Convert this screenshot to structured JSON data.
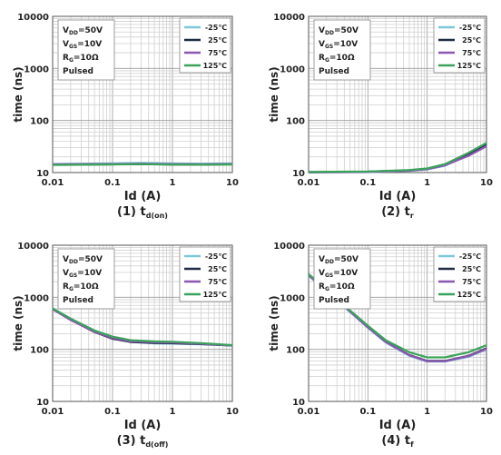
{
  "series_colors": [
    "#7cc8d8",
    "#1f2a44",
    "#8b57b0",
    "#3aa35a"
  ],
  "chart_data": [
    {
      "type": "line",
      "caption": "(1) t",
      "caption_sub": "d(on)",
      "xlabel": "Id (A)",
      "ylabel": "time (ns)",
      "xscale": "log",
      "yscale": "log",
      "xlim": [
        0.01,
        10
      ],
      "ylim": [
        10,
        10000
      ],
      "xticks": [
        "0.01",
        "0.1",
        "1",
        "10"
      ],
      "yticks": [
        "10",
        "100",
        "1000",
        "10000"
      ],
      "grid": true,
      "conditions": [
        {
          "main": "V",
          "sub": "DD",
          "rest": "=50V"
        },
        {
          "main": "V",
          "sub": "GS",
          "rest": "=10V"
        },
        {
          "main": "R",
          "sub": "G",
          "rest": "=10Ω"
        },
        {
          "main": "Pulsed",
          "sub": "",
          "rest": ""
        }
      ],
      "legend_position": "top-right",
      "series": [
        {
          "name": "-25℃",
          "x": [
            0.01,
            0.03,
            0.1,
            0.3,
            1,
            3,
            10
          ],
          "y": [
            14.6,
            14.8,
            15.0,
            15.3,
            15.0,
            14.8,
            15.0
          ]
        },
        {
          "name": "25℃",
          "x": [
            0.01,
            0.03,
            0.1,
            0.3,
            1,
            3,
            10
          ],
          "y": [
            14.2,
            14.3,
            14.4,
            14.6,
            14.3,
            14.2,
            14.4
          ]
        },
        {
          "name": "75℃",
          "x": [
            0.01,
            0.03,
            0.1,
            0.3,
            1,
            3,
            10
          ],
          "y": [
            14.4,
            14.5,
            14.6,
            14.8,
            14.5,
            14.4,
            14.6
          ]
        },
        {
          "name": "125℃",
          "x": [
            0.01,
            0.03,
            0.1,
            0.3,
            1,
            3,
            10
          ],
          "y": [
            14.0,
            14.1,
            14.3,
            14.5,
            14.2,
            14.1,
            14.3
          ]
        }
      ]
    },
    {
      "type": "line",
      "caption": "(2) t",
      "caption_sub": "r",
      "xlabel": "Id (A)",
      "ylabel": "time (ns)",
      "xscale": "log",
      "yscale": "log",
      "xlim": [
        0.01,
        10
      ],
      "ylim": [
        10,
        10000
      ],
      "xticks": [
        "0.01",
        "0.1",
        "1",
        "10"
      ],
      "yticks": [
        "10",
        "100",
        "1000",
        "10000"
      ],
      "grid": true,
      "conditions": [
        {
          "main": "V",
          "sub": "DD",
          "rest": "=50V"
        },
        {
          "main": "V",
          "sub": "GS",
          "rest": "=10V"
        },
        {
          "main": "R",
          "sub": "G",
          "rest": "=10Ω"
        },
        {
          "main": "Pulsed",
          "sub": "",
          "rest": ""
        }
      ],
      "legend_position": "top-right",
      "series": [
        {
          "name": "-25℃",
          "x": [
            0.01,
            0.1,
            0.5,
            1,
            2,
            5,
            10
          ],
          "y": [
            10.0,
            10.2,
            10.8,
            11.5,
            13.5,
            22,
            33
          ]
        },
        {
          "name": "25℃",
          "x": [
            0.01,
            0.1,
            0.5,
            1,
            2,
            5,
            10
          ],
          "y": [
            10.2,
            10.4,
            11.0,
            11.8,
            14.0,
            23,
            35
          ]
        },
        {
          "name": "75℃",
          "x": [
            0.01,
            0.1,
            0.5,
            1,
            2,
            5,
            10
          ],
          "y": [
            10.1,
            10.3,
            10.9,
            11.6,
            13.8,
            21,
            32
          ]
        },
        {
          "name": "125℃",
          "x": [
            0.01,
            0.1,
            0.5,
            1,
            2,
            5,
            10
          ],
          "y": [
            10.3,
            10.5,
            11.2,
            12.0,
            14.5,
            24,
            37
          ]
        }
      ]
    },
    {
      "type": "line",
      "caption": "(3) t",
      "caption_sub": "d(off)",
      "xlabel": "Id (A)",
      "ylabel": "time (ns)",
      "xscale": "log",
      "yscale": "log",
      "xlim": [
        0.01,
        10
      ],
      "ylim": [
        10,
        10000
      ],
      "xticks": [
        "0.01",
        "0.1",
        "1",
        "10"
      ],
      "yticks": [
        "10",
        "100",
        "1000",
        "10000"
      ],
      "grid": true,
      "conditions": [
        {
          "main": "V",
          "sub": "DD",
          "rest": "=50V"
        },
        {
          "main": "V",
          "sub": "GS",
          "rest": "=10V"
        },
        {
          "main": "R",
          "sub": "G",
          "rest": "=10Ω"
        },
        {
          "main": "Pulsed",
          "sub": "",
          "rest": ""
        }
      ],
      "legend_position": "top-right",
      "series": [
        {
          "name": "-25℃",
          "x": [
            0.01,
            0.02,
            0.05,
            0.1,
            0.2,
            0.5,
            1,
            3,
            10
          ],
          "y": [
            620,
            380,
            220,
            165,
            140,
            130,
            128,
            125,
            118
          ]
        },
        {
          "name": "25℃",
          "x": [
            0.01,
            0.02,
            0.05,
            0.1,
            0.2,
            0.5,
            1,
            3,
            10
          ],
          "y": [
            600,
            370,
            215,
            160,
            138,
            133,
            131,
            126,
            118
          ]
        },
        {
          "name": "75℃",
          "x": [
            0.01,
            0.02,
            0.05,
            0.1,
            0.2,
            0.5,
            1,
            3,
            10
          ],
          "y": [
            590,
            365,
            218,
            165,
            142,
            137,
            135,
            128,
            118
          ]
        },
        {
          "name": "125℃",
          "x": [
            0.01,
            0.02,
            0.05,
            0.1,
            0.2,
            0.5,
            1,
            3,
            10
          ],
          "y": [
            610,
            390,
            230,
            175,
            150,
            142,
            140,
            132,
            120
          ]
        }
      ]
    },
    {
      "type": "line",
      "caption": "(4) t",
      "caption_sub": "f",
      "xlabel": "Id (A)",
      "ylabel": "time (ns)",
      "xscale": "log",
      "yscale": "log",
      "xlim": [
        0.01,
        10
      ],
      "ylim": [
        10,
        10000
      ],
      "xticks": [
        "0.01",
        "0.1",
        "1",
        "10"
      ],
      "yticks": [
        "10",
        "100",
        "1000",
        "10000"
      ],
      "grid": true,
      "conditions": [
        {
          "main": "V",
          "sub": "DD",
          "rest": "=50V"
        },
        {
          "main": "V",
          "sub": "GS",
          "rest": "=10V"
        },
        {
          "main": "R",
          "sub": "G",
          "rest": "=10Ω"
        },
        {
          "main": "Pulsed",
          "sub": "",
          "rest": ""
        }
      ],
      "legend_position": "top-right",
      "series": [
        {
          "name": "-25℃",
          "x": [
            0.01,
            0.02,
            0.05,
            0.1,
            0.2,
            0.5,
            1,
            2,
            5,
            10
          ],
          "y": [
            2600,
            1300,
            520,
            260,
            135,
            75,
            58,
            58,
            72,
            100
          ]
        },
        {
          "name": "25℃",
          "x": [
            0.01,
            0.02,
            0.05,
            0.1,
            0.2,
            0.5,
            1,
            2,
            5,
            10
          ],
          "y": [
            2700,
            1350,
            540,
            270,
            140,
            78,
            60,
            60,
            75,
            105
          ]
        },
        {
          "name": "75℃",
          "x": [
            0.01,
            0.02,
            0.05,
            0.1,
            0.2,
            0.5,
            1,
            2,
            5,
            10
          ],
          "y": [
            2650,
            1330,
            530,
            265,
            138,
            77,
            59,
            59,
            74,
            102
          ]
        },
        {
          "name": "125℃",
          "x": [
            0.01,
            0.02,
            0.05,
            0.1,
            0.2,
            0.5,
            1,
            2,
            5,
            10
          ],
          "y": [
            2800,
            1400,
            560,
            285,
            150,
            88,
            70,
            70,
            88,
            120
          ]
        }
      ]
    }
  ]
}
